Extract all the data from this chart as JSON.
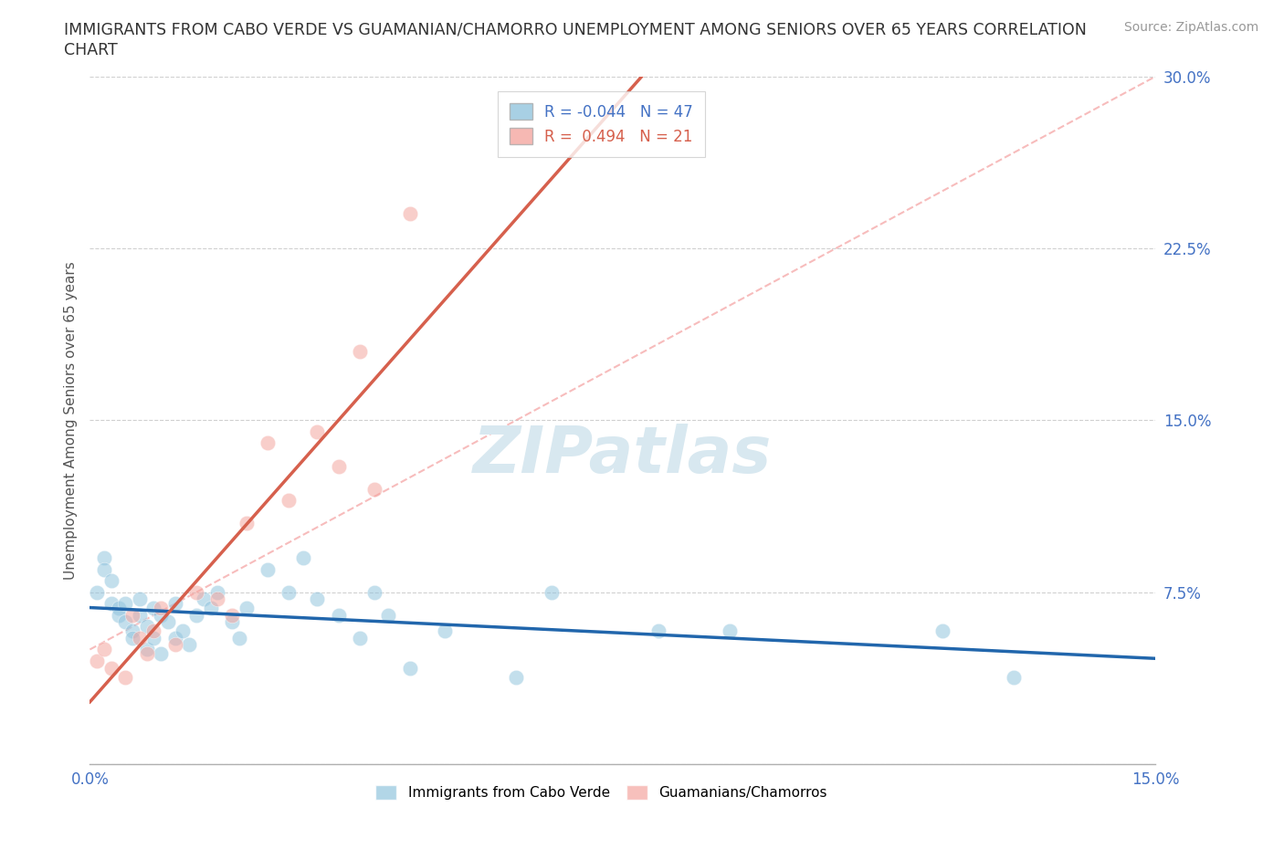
{
  "title_line1": "IMMIGRANTS FROM CABO VERDE VS GUAMANIAN/CHAMORRO UNEMPLOYMENT AMONG SENIORS OVER 65 YEARS CORRELATION",
  "title_line2": "CHART",
  "source": "Source: ZipAtlas.com",
  "ylabel": "Unemployment Among Seniors over 65 years",
  "xlim": [
    0.0,
    0.15
  ],
  "ylim": [
    0.0,
    0.3
  ],
  "yticks": [
    0.0,
    0.075,
    0.15,
    0.225,
    0.3
  ],
  "ytick_labels": [
    "",
    "7.5%",
    "15.0%",
    "22.5%",
    "30.0%"
  ],
  "xticks": [
    0.0,
    0.025,
    0.05,
    0.075,
    0.1,
    0.125,
    0.15
  ],
  "xtick_labels": [
    "0.0%",
    "",
    "",
    "",
    "",
    "",
    "15.0%"
  ],
  "cabo_verde_color": "#92c5de",
  "guamanian_color": "#f4a6a0",
  "cabo_verde_R": -0.044,
  "cabo_verde_N": 47,
  "guamanian_R": 0.494,
  "guamanian_N": 21,
  "cabo_verde_line_color": "#2166ac",
  "guamanian_line_color": "#d6604d",
  "diag_line_color": "#f4a0a0",
  "background_color": "#ffffff",
  "grid_color": "#d0d0d0",
  "watermark_color": "#d8e8f0",
  "cabo_verde_x": [
    0.001,
    0.002,
    0.002,
    0.003,
    0.003,
    0.004,
    0.004,
    0.005,
    0.005,
    0.006,
    0.006,
    0.007,
    0.007,
    0.008,
    0.008,
    0.009,
    0.009,
    0.01,
    0.01,
    0.011,
    0.012,
    0.012,
    0.013,
    0.014,
    0.015,
    0.016,
    0.017,
    0.018,
    0.02,
    0.021,
    0.022,
    0.025,
    0.028,
    0.03,
    0.032,
    0.035,
    0.038,
    0.04,
    0.042,
    0.045,
    0.05,
    0.06,
    0.065,
    0.08,
    0.09,
    0.12,
    0.13
  ],
  "cabo_verde_y": [
    0.075,
    0.09,
    0.085,
    0.08,
    0.07,
    0.068,
    0.065,
    0.07,
    0.062,
    0.058,
    0.055,
    0.072,
    0.065,
    0.06,
    0.05,
    0.068,
    0.055,
    0.065,
    0.048,
    0.062,
    0.07,
    0.055,
    0.058,
    0.052,
    0.065,
    0.072,
    0.068,
    0.075,
    0.062,
    0.055,
    0.068,
    0.085,
    0.075,
    0.09,
    0.072,
    0.065,
    0.055,
    0.075,
    0.065,
    0.042,
    0.058,
    0.038,
    0.075,
    0.058,
    0.058,
    0.058,
    0.038
  ],
  "guamanian_x": [
    0.001,
    0.002,
    0.003,
    0.005,
    0.006,
    0.007,
    0.008,
    0.009,
    0.01,
    0.012,
    0.015,
    0.018,
    0.02,
    0.022,
    0.025,
    0.028,
    0.032,
    0.035,
    0.038,
    0.04,
    0.045
  ],
  "guamanian_y": [
    0.045,
    0.05,
    0.042,
    0.038,
    0.065,
    0.055,
    0.048,
    0.058,
    0.068,
    0.052,
    0.075,
    0.072,
    0.065,
    0.105,
    0.14,
    0.115,
    0.145,
    0.13,
    0.18,
    0.12,
    0.24
  ]
}
